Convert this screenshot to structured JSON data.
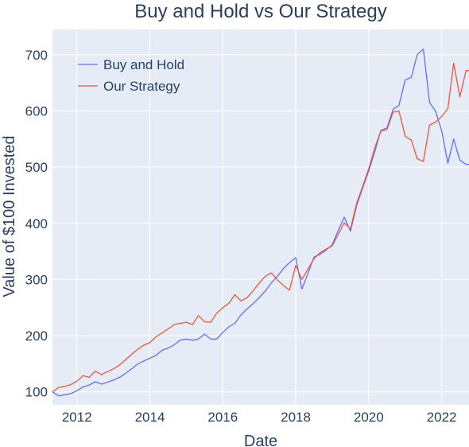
{
  "chart_data": {
    "type": "line",
    "title": "Buy and Hold vs Our Strategy",
    "xlabel": "Date",
    "ylabel": "Value of $100 Invested",
    "x_ticks": [
      "2012",
      "2014",
      "2016",
      "2018",
      "2020",
      "2022"
    ],
    "y_ticks": [
      "100",
      "200",
      "300",
      "400",
      "500",
      "600",
      "700"
    ],
    "xlim": [
      2011.33,
      2022.75
    ],
    "ylim": [
      77,
      745
    ],
    "grid": true,
    "legend_position": "top-left",
    "colors": {
      "plot_background": "#e5ecf6",
      "grid": "#ffffff",
      "text": "#2a3f5f"
    },
    "series": [
      {
        "name": "Buy and Hold",
        "color": "#636efa",
        "x": [
          2011.33,
          2011.5,
          2011.67,
          2011.83,
          2012.0,
          2012.17,
          2012.33,
          2012.5,
          2012.67,
          2012.83,
          2013.0,
          2013.17,
          2013.33,
          2013.5,
          2013.67,
          2013.83,
          2014.0,
          2014.17,
          2014.33,
          2014.5,
          2014.67,
          2014.83,
          2015.0,
          2015.17,
          2015.33,
          2015.5,
          2015.67,
          2015.83,
          2016.0,
          2016.17,
          2016.33,
          2016.5,
          2016.67,
          2016.83,
          2017.0,
          2017.17,
          2017.33,
          2017.5,
          2017.67,
          2017.83,
          2018.0,
          2018.17,
          2018.33,
          2018.5,
          2018.67,
          2018.83,
          2019.0,
          2019.17,
          2019.33,
          2019.5,
          2019.67,
          2019.83,
          2020.0,
          2020.17,
          2020.33,
          2020.5,
          2020.67,
          2020.83,
          2021.0,
          2021.17,
          2021.33,
          2021.5,
          2021.67,
          2021.83,
          2022.0,
          2022.17,
          2022.33,
          2022.5,
          2022.67,
          2022.75
        ],
        "values": [
          100,
          93,
          95,
          97,
          102,
          109,
          112,
          118,
          114,
          117,
          121,
          126,
          133,
          141,
          150,
          155,
          160,
          165,
          174,
          178,
          184,
          192,
          194,
          192,
          194,
          203,
          194,
          194,
          206,
          216,
          222,
          237,
          248,
          257,
          268,
          280,
          294,
          306,
          320,
          330,
          339,
          283,
          310,
          340,
          345,
          352,
          362,
          388,
          411,
          386,
          432,
          462,
          493,
          528,
          565,
          570,
          603,
          610,
          655,
          660,
          700,
          710,
          615,
          600,
          565,
          507,
          550,
          512,
          505,
          505
        ]
      },
      {
        "name": "Our Strategy",
        "color": "#ef553b",
        "x": [
          2011.33,
          2011.5,
          2011.67,
          2011.83,
          2012.0,
          2012.17,
          2012.33,
          2012.5,
          2012.67,
          2012.83,
          2013.0,
          2013.17,
          2013.33,
          2013.5,
          2013.67,
          2013.83,
          2014.0,
          2014.17,
          2014.33,
          2014.5,
          2014.67,
          2014.83,
          2015.0,
          2015.17,
          2015.33,
          2015.5,
          2015.67,
          2015.83,
          2016.0,
          2016.17,
          2016.33,
          2016.5,
          2016.67,
          2016.83,
          2017.0,
          2017.17,
          2017.33,
          2017.5,
          2017.67,
          2017.83,
          2018.0,
          2018.17,
          2018.33,
          2018.5,
          2018.67,
          2018.83,
          2019.0,
          2019.17,
          2019.33,
          2019.5,
          2019.67,
          2019.83,
          2020.0,
          2020.17,
          2020.33,
          2020.5,
          2020.67,
          2020.83,
          2021.0,
          2021.17,
          2021.33,
          2021.5,
          2021.67,
          2021.83,
          2022.0,
          2022.17,
          2022.33,
          2022.5,
          2022.67,
          2022.75
        ],
        "values": [
          100,
          108,
          110,
          113,
          119,
          129,
          126,
          137,
          131,
          136,
          141,
          148,
          157,
          167,
          176,
          183,
          188,
          198,
          205,
          212,
          220,
          222,
          224,
          220,
          236,
          225,
          224,
          240,
          250,
          258,
          273,
          262,
          268,
          280,
          294,
          306,
          312,
          299,
          289,
          281,
          325,
          300,
          318,
          337,
          348,
          354,
          360,
          381,
          401,
          390,
          436,
          465,
          497,
          535,
          564,
          567,
          598,
          600,
          555,
          548,
          515,
          510,
          575,
          580,
          590,
          604,
          685,
          625,
          672,
          672
        ]
      }
    ]
  }
}
